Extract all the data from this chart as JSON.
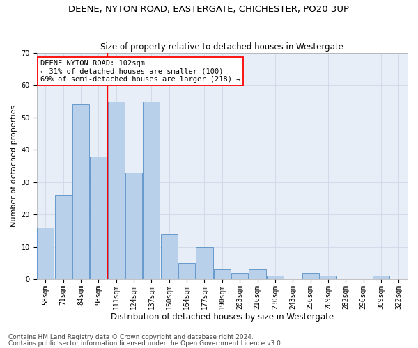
{
  "title1": "DEENE, NYTON ROAD, EASTERGATE, CHICHESTER, PO20 3UP",
  "title2": "Size of property relative to detached houses in Westergate",
  "xlabel": "Distribution of detached houses by size in Westergate",
  "ylabel": "Number of detached properties",
  "categories": [
    "58sqm",
    "71sqm",
    "84sqm",
    "98sqm",
    "111sqm",
    "124sqm",
    "137sqm",
    "150sqm",
    "164sqm",
    "177sqm",
    "190sqm",
    "203sqm",
    "216sqm",
    "230sqm",
    "243sqm",
    "256sqm",
    "269sqm",
    "282sqm",
    "296sqm",
    "309sqm",
    "322sqm"
  ],
  "values": [
    16,
    26,
    54,
    38,
    55,
    33,
    55,
    14,
    5,
    10,
    3,
    2,
    3,
    1,
    0,
    2,
    1,
    0,
    0,
    1,
    0
  ],
  "bar_color": "#b8d0ea",
  "bar_edge_color": "#6699cc",
  "vline_color": "red",
  "vline_x": 3.5,
  "annotation_text": "DEENE NYTON ROAD: 102sqm\n← 31% of detached houses are smaller (100)\n69% of semi-detached houses are larger (218) →",
  "annotation_box_color": "white",
  "annotation_box_edge": "red",
  "ylim": [
    0,
    70
  ],
  "yticks": [
    0,
    10,
    20,
    30,
    40,
    50,
    60,
    70
  ],
  "grid_color": "#d0d8e8",
  "background_color": "#e8eef8",
  "footnote1": "Contains HM Land Registry data © Crown copyright and database right 2024.",
  "footnote2": "Contains public sector information licensed under the Open Government Licence v3.0.",
  "title1_fontsize": 9.5,
  "title2_fontsize": 8.5,
  "xlabel_fontsize": 8.5,
  "ylabel_fontsize": 8,
  "tick_fontsize": 7,
  "annotation_fontsize": 7.5,
  "footnote_fontsize": 6.5
}
